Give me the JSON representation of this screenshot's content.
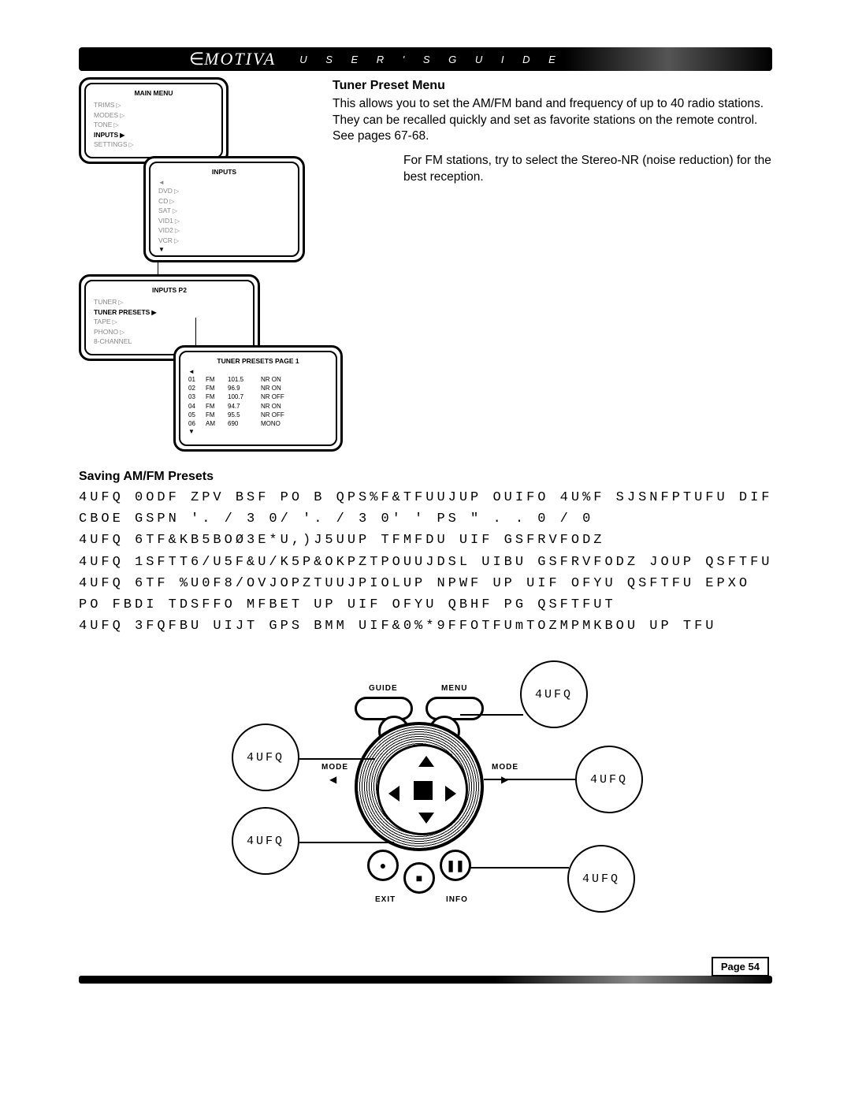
{
  "header": {
    "logo": "MOTIVA",
    "title": "U S E R ' S    G U I D E"
  },
  "section": {
    "title": "Tuner Preset Menu",
    "p1": "This allows you to set the AM/FM band and frequency of up to 40 radio stations. They can be recalled quickly and set as favorite stations on the remote control. See pages 67-68.",
    "p2": "For FM stations, try to select the Stereo-NR (noise reduction) for the best reception."
  },
  "screens": {
    "main": {
      "title": "MAIN MENU",
      "items": [
        "TRIMS",
        "MODES",
        "TONE",
        "INPUTS",
        "SETTINGS"
      ],
      "active": "INPUTS"
    },
    "inputs": {
      "title": "INPUTS",
      "items": [
        "DVD",
        "CD",
        "SAT",
        "VID1",
        "VID2",
        "VCR"
      ]
    },
    "inputs_p2": {
      "title": "INPUTS P2",
      "items": [
        "TUNER",
        "TUNER PRESETS",
        "TAPE",
        "PHONO",
        "8-CHANNEL"
      ],
      "active": "TUNER PRESETS"
    },
    "presets": {
      "title": "TUNER PRESETS PAGE 1",
      "rows": [
        [
          "01",
          "FM",
          "101.5",
          "NR ON"
        ],
        [
          "02",
          "FM",
          "96.9",
          "NR ON"
        ],
        [
          "03",
          "FM",
          "100.7",
          "NR OFF"
        ],
        [
          "04",
          "FM",
          "94.7",
          "NR ON"
        ],
        [
          "05",
          "FM",
          "95.5",
          "NR OFF"
        ],
        [
          "06",
          "AM",
          "690",
          "MONO"
        ]
      ]
    }
  },
  "saving": {
    "title": "Saving AM/FM Presets",
    "lines": [
      "4UFQ   0ODF ZPV BSF PO B QPS%F&TFUUJUP OUIFO 4U%F SJSNFPTUFU DIFPOU",
      "CBOE GSPN '. / 3 0/  '. / 3 0' '  PS \" .  . 0 / 0",
      "4UFQ   6TF&KB5BOØ3E*U,)J5UUP TFMFDU UIF GSFRVFODZ",
      "4UFQ   1SFTT6/U5F&U/K5P&OKPZTPOUUJDSL UIBU GSFRVFODZ JOUP QSFTFU N",
      "4UFQ   6TF %U0F8/OVJOPZTUUJPIOLUP NPWF UP UIF OFYU QSFTFU EPXO ",
      "PO FBDI TDSFFO MFBET UP UIF OFYU QBHF PG QSFTFUT",
      "4UFQ   3FQFBU UIJT GPS BMM UIF&0%*9FFOTFUmTOZMPMKBOU UP TFU"
    ]
  },
  "remote": {
    "labels": {
      "guide": "GUIDE",
      "menu": "MENU",
      "mode_l": "MODE",
      "mode_r": "MODE",
      "exit": "EXIT",
      "info": "INFO"
    },
    "callout": "4UFQ"
  },
  "footer": {
    "page": "Page 54"
  },
  "colors": {
    "ink": "#000000",
    "bg": "#ffffff",
    "muted": "#888888"
  }
}
